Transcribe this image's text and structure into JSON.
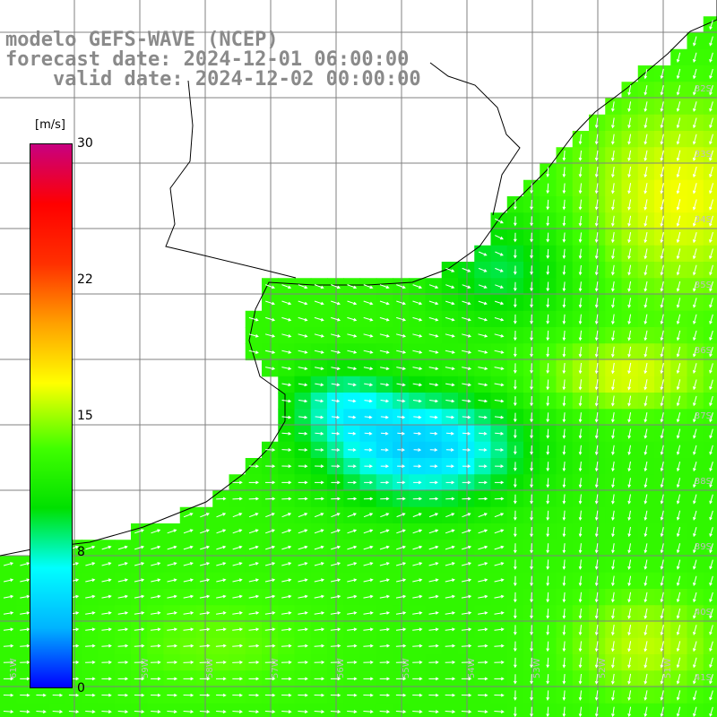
{
  "title": {
    "line1": "modelo GEFS-WAVE (NCEP)",
    "line2": "forecast date: 2024-12-01 06:00:00",
    "line3": "    valid date: 2024-12-02 00:00:00"
  },
  "colorbar": {
    "units": "[m/s]",
    "min": 0,
    "max": 30,
    "tick_labels": [
      "30",
      "22",
      "15",
      "8",
      "0"
    ],
    "colors": [
      "#0000ff",
      "#00b4ff",
      "#00ffff",
      "#00e000",
      "#40ff00",
      "#ffff00",
      "#ffa000",
      "#ff3000",
      "#ff0000",
      "#c80080"
    ]
  },
  "grid": {
    "lat_labels": [
      "32S",
      "33S",
      "34S",
      "35S",
      "36S",
      "37S",
      "38S",
      "39S",
      "40S",
      "41S"
    ],
    "lon_labels": [
      "61W",
      "59W",
      "58W",
      "57W",
      "56W",
      "55W",
      "54W",
      "53W",
      "52W",
      "51W"
    ]
  },
  "field": {
    "description_colors": {
      "land": "#ffffff",
      "coast": "#000000",
      "gridline": "#808080",
      "arrow": "#ffffff"
    }
  }
}
